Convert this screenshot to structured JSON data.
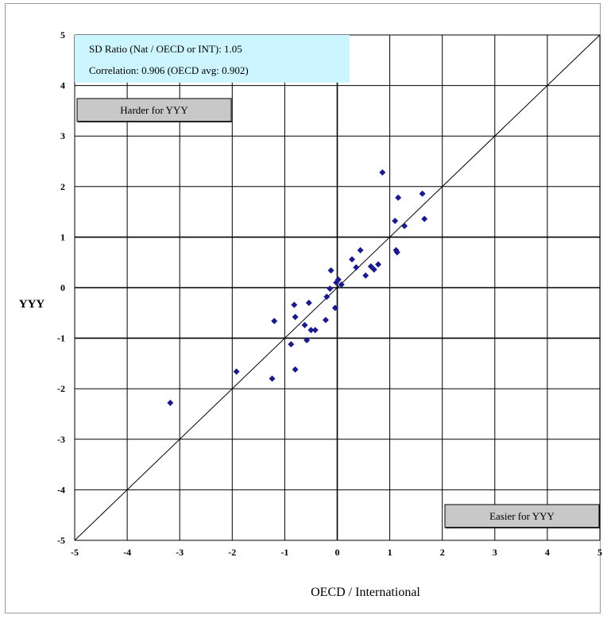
{
  "chart_data": {
    "type": "scatter",
    "xlabel": "OECD / International",
    "ylabel": "YYY",
    "xlim": [
      -5,
      5
    ],
    "ylim": [
      -5,
      5
    ],
    "xticks": [
      -5,
      -4,
      -3,
      -2,
      -1,
      0,
      1,
      2,
      3,
      4,
      5
    ],
    "yticks": [
      -5,
      -4,
      -3,
      -2,
      -1,
      0,
      1,
      2,
      3,
      4,
      5
    ],
    "grid": true,
    "reference_line": {
      "type": "identity",
      "from": [
        -5,
        -5
      ],
      "to": [
        5,
        5
      ]
    },
    "marker_color": "#1a1a8c",
    "points": [
      {
        "x": -3.18,
        "y": -2.28
      },
      {
        "x": -1.92,
        "y": -1.66
      },
      {
        "x": -1.24,
        "y": -1.8
      },
      {
        "x": -1.2,
        "y": -0.66
      },
      {
        "x": -0.88,
        "y": -1.12
      },
      {
        "x": -0.82,
        "y": -0.34
      },
      {
        "x": -0.8,
        "y": -0.58
      },
      {
        "x": -0.8,
        "y": -1.62
      },
      {
        "x": -0.62,
        "y": -0.74
      },
      {
        "x": -0.58,
        "y": -1.04
      },
      {
        "x": -0.54,
        "y": -0.3
      },
      {
        "x": -0.5,
        "y": -0.84
      },
      {
        "x": -0.42,
        "y": -0.84
      },
      {
        "x": -0.22,
        "y": -0.64
      },
      {
        "x": -0.2,
        "y": -0.18
      },
      {
        "x": -0.14,
        "y": -0.02
      },
      {
        "x": -0.12,
        "y": 0.34
      },
      {
        "x": -0.04,
        "y": -0.4
      },
      {
        "x": -0.02,
        "y": 0.1
      },
      {
        "x": 0.02,
        "y": 0.16
      },
      {
        "x": 0.08,
        "y": 0.06
      },
      {
        "x": 0.28,
        "y": 0.56
      },
      {
        "x": 0.36,
        "y": 0.4
      },
      {
        "x": 0.44,
        "y": 0.74
      },
      {
        "x": 0.54,
        "y": 0.24
      },
      {
        "x": 0.64,
        "y": 0.42
      },
      {
        "x": 0.7,
        "y": 0.36
      },
      {
        "x": 0.78,
        "y": 0.46
      },
      {
        "x": 0.86,
        "y": 2.28
      },
      {
        "x": 1.1,
        "y": 1.32
      },
      {
        "x": 1.12,
        "y": 0.74
      },
      {
        "x": 1.14,
        "y": 0.7
      },
      {
        "x": 1.16,
        "y": 1.78
      },
      {
        "x": 1.28,
        "y": 1.22
      },
      {
        "x": 1.62,
        "y": 1.86
      },
      {
        "x": 1.66,
        "y": 1.36
      }
    ],
    "annotations": {
      "sd_ratio": "SD Ratio (Nat / OECD or INT):  1.05",
      "correlation": "Correlation:  0.906  (OECD avg: 0.902)",
      "harder_label": "Harder for YYY",
      "easier_label": "Easier for YYY"
    },
    "colors": {
      "info_box_bg": "#ccf5ff",
      "label_box_bg": "#c8c8c8"
    }
  }
}
